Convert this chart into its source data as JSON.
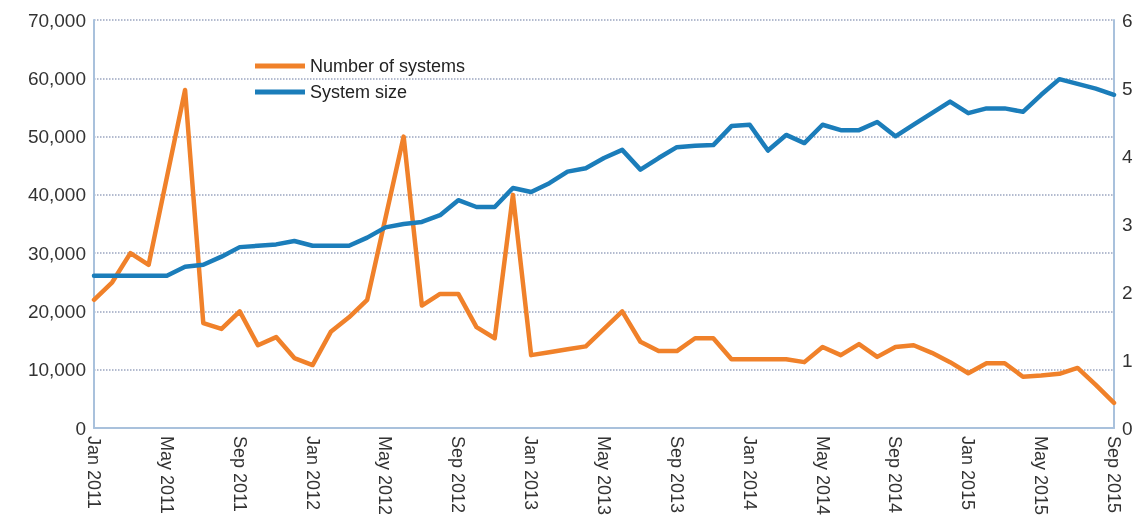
{
  "chart_data": {
    "type": "line",
    "categories": [
      "Jan 2011",
      null,
      null,
      null,
      "May 2011",
      null,
      null,
      null,
      "Sep 2011",
      null,
      null,
      null,
      "Jan 2012",
      null,
      null,
      null,
      "May 2012",
      null,
      null,
      null,
      "Sep 2012",
      null,
      null,
      null,
      "Jan 2013",
      null,
      null,
      null,
      "May 2013",
      null,
      null,
      null,
      "Sep 2013",
      null,
      null,
      null,
      "Jan 2014",
      null,
      null,
      null,
      "May 2014",
      null,
      null,
      null,
      "Sep 2014",
      null,
      null,
      null,
      "Jan 2015",
      null,
      null,
      null,
      "May 2015",
      null,
      null,
      null,
      "Sep 2015"
    ],
    "series": [
      {
        "name": "Number of systems",
        "color": "#f0812a",
        "values": [
          22000,
          25000,
          30000,
          28000,
          43000,
          58000,
          18000,
          17000,
          20000,
          14200,
          15600,
          12000,
          10800,
          16500,
          19000,
          22000,
          36000,
          50000,
          21000,
          23000,
          23000,
          17300,
          15400,
          40000,
          12500,
          13000,
          13500,
          14000,
          17000,
          20000,
          14800,
          13200,
          13200,
          15400,
          15400,
          11800,
          11800,
          11800,
          11800,
          11300,
          13900,
          12500,
          14400,
          12200,
          13900,
          14200,
          12900,
          11300,
          9400,
          11100,
          11100,
          8800,
          9000,
          9300,
          10300,
          7400,
          4300
        ]
      },
      {
        "name": "System size",
        "color": "#1b7dba",
        "axis": "y2",
        "values": [
          2.24,
          2.24,
          2.24,
          2.24,
          2.24,
          2.37,
          2.4,
          2.52,
          2.66,
          2.68,
          2.7,
          2.75,
          2.68,
          2.68,
          2.68,
          2.8,
          2.95,
          3.0,
          3.03,
          3.13,
          3.35,
          3.25,
          3.25,
          3.53,
          3.47,
          3.6,
          3.77,
          3.82,
          3.97,
          4.09,
          3.8,
          3.97,
          4.13,
          4.15,
          4.16,
          4.44,
          4.46,
          4.08,
          4.31,
          4.19,
          4.46,
          4.38,
          4.38,
          4.5,
          4.29,
          4.46,
          4.63,
          4.8,
          4.63,
          4.7,
          4.7,
          4.65,
          4.9,
          5.13,
          5.06,
          4.99,
          4.9
        ]
      }
    ],
    "ylim": [
      0,
      70000
    ],
    "yticks": [
      0,
      {
        "value": 10000,
        "label": "10,000"
      },
      {
        "value": 20000,
        "label": "20,000"
      },
      {
        "value": 30000,
        "label": "30,000"
      },
      {
        "value": 40000,
        "label": "40,000"
      },
      {
        "value": 50000,
        "label": "50,000"
      },
      {
        "value": 60000,
        "label": "60,000"
      },
      {
        "value": 70000,
        "label": "70,000"
      }
    ],
    "y2lim": [
      0,
      6
    ],
    "y2ticks": [
      0,
      1,
      2,
      3,
      4,
      5,
      6
    ],
    "grid": "y",
    "legend": "top left",
    "marker": "none",
    "line_style": "solid"
  }
}
